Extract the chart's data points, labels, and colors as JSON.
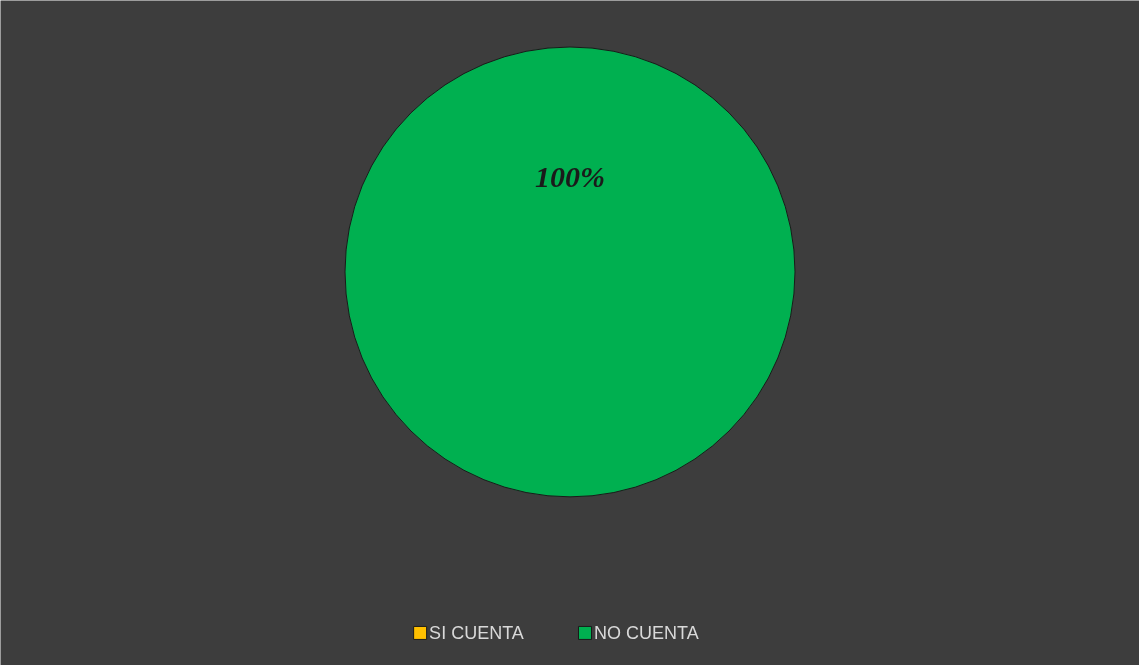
{
  "chart_data": {
    "type": "pie",
    "categories": [
      "SI CUENTA",
      "NO CUENTA"
    ],
    "values": [
      0,
      100
    ],
    "colors": [
      "#ffc000",
      "#00b050"
    ],
    "value_labels": [
      null,
      "100%"
    ],
    "legend": "bottom"
  }
}
